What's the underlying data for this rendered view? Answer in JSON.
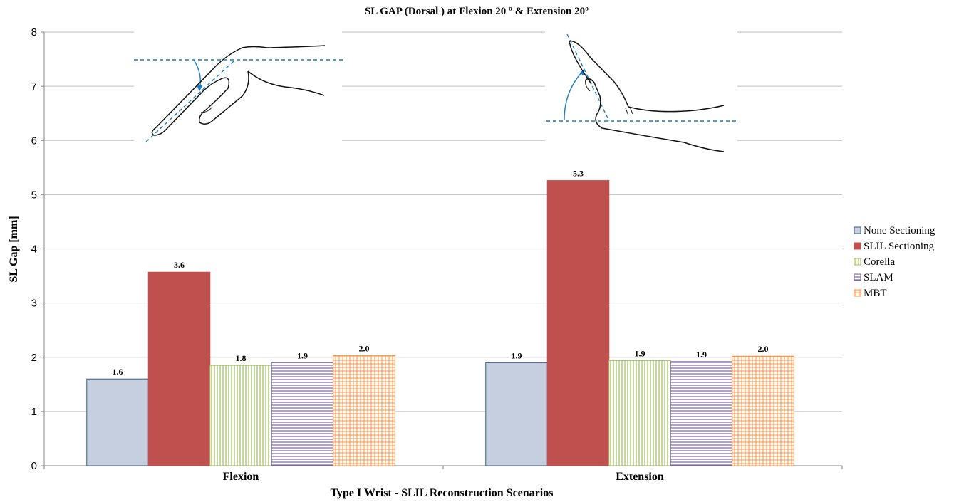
{
  "chart_data": {
    "type": "bar",
    "title": "SL GAP (Dorsal ) at Flexion 20 º & Extension 20º",
    "xlabel": "Type I Wrist - SLIL Reconstruction Scenarios",
    "ylabel": "SL Gap [mm]",
    "ylim": [
      0,
      8
    ],
    "yticks": [
      "0",
      "1",
      "2",
      "3",
      "4",
      "5",
      "6",
      "7",
      "8"
    ],
    "categories": [
      "Flexion",
      "Extension"
    ],
    "grid": true,
    "legend_position": "right",
    "series": [
      {
        "name": "None Sectioning",
        "values": [
          1.6,
          1.9
        ],
        "labels": [
          "1.6",
          "1.9"
        ],
        "color": "#c5cfdf",
        "stroke": "#3b5a8c",
        "pattern": "solid"
      },
      {
        "name": "SLIL Sectioning",
        "values": [
          3.57,
          5.26
        ],
        "labels": [
          "3.6",
          "5.3"
        ],
        "color": "#c0504d",
        "stroke": "#c0504d",
        "pattern": "solid"
      },
      {
        "name": "Corella",
        "values": [
          1.85,
          1.94
        ],
        "labels": [
          "1.8",
          "1.9"
        ],
        "color": "#9bbb59",
        "stroke": "#9bbb59",
        "pattern": "vertical"
      },
      {
        "name": "SLAM",
        "values": [
          1.9,
          1.92
        ],
        "labels": [
          "1.9",
          "1.9"
        ],
        "color": "#8064a2",
        "stroke": "#8064a2",
        "pattern": "horizontal"
      },
      {
        "name": "MBT",
        "values": [
          2.03,
          2.02
        ],
        "labels": [
          "2.0",
          "2.0"
        ],
        "color": "#f79646",
        "stroke": "#f79646",
        "pattern": "grid"
      }
    ]
  },
  "illustrations": {
    "flexion": "wrist-flexion-icon",
    "extension": "wrist-extension-icon"
  }
}
